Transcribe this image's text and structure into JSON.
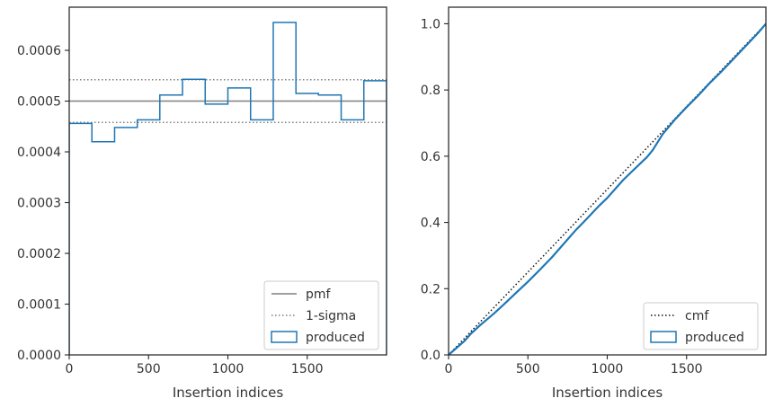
{
  "chart_data": [
    {
      "type": "histogram",
      "title": "",
      "xlabel": "Insertion indices",
      "ylabel": "",
      "xlim": [
        0,
        2000
      ],
      "ylim": [
        0,
        0.000685
      ],
      "x_ticks": [
        0,
        500,
        1000,
        1500
      ],
      "x_tick_labels": [
        "0",
        "500",
        "1000",
        "1500"
      ],
      "y_ticks": [
        0,
        0.0001,
        0.0002,
        0.0003,
        0.0004,
        0.0005,
        0.0006
      ],
      "y_tick_labels": [
        "0.0000",
        "0.0001",
        "0.0002",
        "0.0003",
        "0.0004",
        "0.0005",
        "0.0006"
      ],
      "grid": false,
      "legend_position": "lower-right",
      "lines": [
        {
          "name": "pmf",
          "y": 0.0005,
          "style": "solid",
          "color": "#808080"
        },
        {
          "name": "1-sigma",
          "y": 0.000542,
          "style": "dotted",
          "color": "#808080"
        },
        {
          "name": "1-sigma",
          "y": 0.000458,
          "style": "dotted",
          "color": "#808080",
          "legend": false
        }
      ],
      "series": [
        {
          "name": "produced",
          "color": "#1f77b4",
          "bin_edges": [
            0,
            143,
            286,
            429,
            571,
            714,
            857,
            1000,
            1143,
            1286,
            1429,
            1571,
            1714,
            1857,
            2000
          ],
          "values": [
            0.000456,
            0.00042,
            0.000448,
            0.000463,
            0.000512,
            0.000543,
            0.000494,
            0.000526,
            0.000463,
            0.000655,
            0.000515,
            0.000512,
            0.000463,
            0.00054
          ]
        }
      ],
      "legend": [
        "pmf",
        "1-sigma",
        "produced"
      ]
    },
    {
      "type": "line",
      "title": "",
      "xlabel": "Insertion indices",
      "ylabel": "",
      "xlim": [
        0,
        2000
      ],
      "ylim": [
        0,
        1.05
      ],
      "x_ticks": [
        0,
        500,
        1000,
        1500
      ],
      "x_tick_labels": [
        "0",
        "500",
        "1000",
        "1500"
      ],
      "y_ticks": [
        0,
        0.2,
        0.4,
        0.6,
        0.8,
        1.0
      ],
      "y_tick_labels": [
        "0.0",
        "0.2",
        "0.4",
        "0.6",
        "0.8",
        "1.0"
      ],
      "grid": false,
      "legend_position": "lower-right",
      "series": [
        {
          "name": "cmf",
          "style": "dotted",
          "color": "#111111",
          "x": [
            0,
            2000
          ],
          "y": [
            0,
            1.0
          ]
        },
        {
          "name": "produced",
          "style": "step",
          "color": "#1f77b4",
          "x": [
            0,
            50,
            100,
            143,
            200,
            286,
            350,
            429,
            500,
            571,
            650,
            714,
            800,
            857,
            950,
            1000,
            1100,
            1143,
            1250,
            1286,
            1350,
            1429,
            1500,
            1571,
            1650,
            1714,
            1800,
            1857,
            1950,
            2000
          ],
          "y": [
            0,
            0.021,
            0.042,
            0.065,
            0.09,
            0.125,
            0.153,
            0.189,
            0.221,
            0.255,
            0.294,
            0.329,
            0.376,
            0.404,
            0.451,
            0.474,
            0.528,
            0.548,
            0.597,
            0.618,
            0.667,
            0.712,
            0.748,
            0.782,
            0.823,
            0.853,
            0.896,
            0.925,
            0.972,
            1.0
          ]
        }
      ],
      "legend": [
        "cmf",
        "produced"
      ]
    }
  ]
}
